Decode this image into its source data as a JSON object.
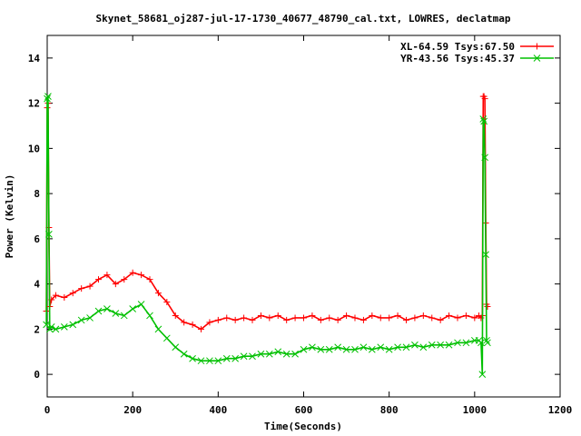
{
  "chart_data": {
    "type": "line",
    "title": "Skynet_58681_oj287-jul-17-1730_40677_48790_cal.txt, LOWRES, declatmap",
    "xlabel": "Time(Seconds)",
    "ylabel": "Power (Kelvin)",
    "xlim": [
      0,
      1200
    ],
    "ylim": [
      -1,
      15
    ],
    "x_ticks": [
      0,
      200,
      400,
      600,
      800,
      1000,
      1200
    ],
    "y_ticks": [
      0,
      2,
      4,
      6,
      8,
      10,
      12,
      14
    ],
    "grid": false,
    "legend_position": "top-right",
    "series": [
      {
        "name": "XL-64.59 Tsys:67.50",
        "color": "#ff0000",
        "marker": "plus",
        "x": [
          -2,
          0,
          2,
          4,
          6,
          10,
          20,
          40,
          60,
          80,
          100,
          120,
          140,
          160,
          180,
          200,
          220,
          240,
          260,
          280,
          300,
          320,
          340,
          360,
          380,
          400,
          420,
          440,
          460,
          480,
          500,
          520,
          540,
          560,
          580,
          600,
          620,
          640,
          660,
          680,
          700,
          720,
          740,
          760,
          780,
          800,
          820,
          840,
          860,
          880,
          900,
          920,
          940,
          960,
          980,
          1000,
          1010,
          1015,
          1018,
          1020,
          1022,
          1024,
          1026,
          1028,
          1030
        ],
        "y": [
          2.8,
          11.8,
          12.0,
          6.5,
          3.0,
          3.3,
          3.5,
          3.4,
          3.6,
          3.8,
          3.9,
          4.2,
          4.4,
          4.0,
          4.2,
          4.5,
          4.4,
          4.2,
          3.6,
          3.2,
          2.6,
          2.3,
          2.2,
          2.0,
          2.3,
          2.4,
          2.5,
          2.4,
          2.5,
          2.4,
          2.6,
          2.5,
          2.6,
          2.4,
          2.5,
          2.5,
          2.6,
          2.4,
          2.5,
          2.4,
          2.6,
          2.5,
          2.4,
          2.6,
          2.5,
          2.5,
          2.6,
          2.4,
          2.5,
          2.6,
          2.5,
          2.4,
          2.6,
          2.5,
          2.6,
          2.5,
          2.6,
          2.5,
          2.6,
          12.3,
          12.3,
          12.2,
          6.7,
          3.1,
          3.0
        ]
      },
      {
        "name": "YR-43.56 Tsys:45.37",
        "color": "#00c000",
        "marker": "cross",
        "x": [
          -2,
          0,
          2,
          4,
          6,
          10,
          20,
          40,
          60,
          80,
          100,
          120,
          140,
          160,
          180,
          200,
          220,
          240,
          260,
          280,
          300,
          320,
          340,
          360,
          380,
          400,
          420,
          440,
          460,
          480,
          500,
          520,
          540,
          560,
          580,
          600,
          620,
          640,
          660,
          680,
          700,
          720,
          740,
          760,
          780,
          800,
          820,
          840,
          860,
          880,
          900,
          920,
          940,
          960,
          980,
          1000,
          1010,
          1015,
          1018,
          1020,
          1022,
          1024,
          1026,
          1028,
          1030
        ],
        "y": [
          2.2,
          12.2,
          12.3,
          6.2,
          2.0,
          2.1,
          2.0,
          2.1,
          2.2,
          2.4,
          2.5,
          2.8,
          2.9,
          2.7,
          2.6,
          2.9,
          3.1,
          2.6,
          2.0,
          1.6,
          1.2,
          0.9,
          0.7,
          0.6,
          0.6,
          0.6,
          0.7,
          0.7,
          0.8,
          0.8,
          0.9,
          0.9,
          1.0,
          0.9,
          0.9,
          1.1,
          1.2,
          1.1,
          1.1,
          1.2,
          1.1,
          1.1,
          1.2,
          1.1,
          1.2,
          1.1,
          1.2,
          1.2,
          1.3,
          1.2,
          1.3,
          1.3,
          1.3,
          1.4,
          1.4,
          1.5,
          1.5,
          1.4,
          0.0,
          11.3,
          11.2,
          9.6,
          5.3,
          1.5,
          1.4
        ]
      }
    ]
  }
}
